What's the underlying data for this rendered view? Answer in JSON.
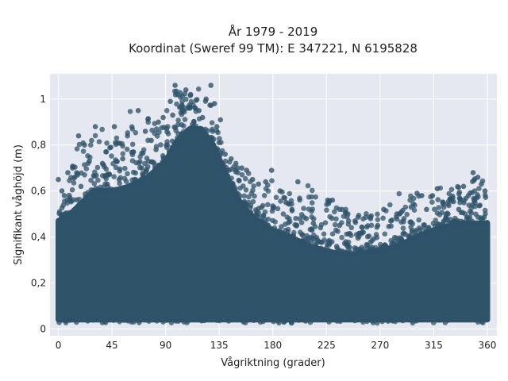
{
  "chart_data": {
    "type": "scatter",
    "title": "År 1979 - 2019",
    "subtitle": "Koordinat (Sweref 99 TM): E 347221, N 6195828",
    "xlabel": "Vågriktning (grader)",
    "ylabel": "Signifikant våghöjd (m)",
    "xlim": [
      -7,
      368
    ],
    "ylim": [
      -0.03,
      1.11
    ],
    "x_ticks": [
      0,
      45,
      90,
      135,
      180,
      225,
      270,
      315,
      360
    ],
    "x_tick_labels": [
      "0",
      "45",
      "90",
      "135",
      "180",
      "225",
      "270",
      "315",
      "360"
    ],
    "y_ticks": [
      0,
      0.2,
      0.4,
      0.6,
      0.8,
      1.0
    ],
    "y_tick_labels": [
      "0",
      "0,2",
      "0,4",
      "0,6",
      "0,8",
      "1"
    ],
    "grid": true,
    "legend": "none",
    "colors": {
      "marker": "#2f5369",
      "plot_background": "#e5e8f0",
      "grid": "#ffffff"
    },
    "series": [
      {
        "envelope": {
          "direction": [
            0,
            10,
            20,
            30,
            45,
            60,
            75,
            90,
            100,
            110,
            120,
            130,
            140,
            150,
            160,
            170,
            180,
            195,
            210,
            225,
            240,
            255,
            270,
            285,
            300,
            315,
            330,
            345,
            360
          ],
          "dense_min": [
            0.04,
            0.04,
            0.04,
            0.04,
            0.04,
            0.04,
            0.04,
            0.04,
            0.04,
            0.04,
            0.04,
            0.04,
            0.04,
            0.04,
            0.04,
            0.04,
            0.04,
            0.04,
            0.04,
            0.04,
            0.04,
            0.04,
            0.04,
            0.04,
            0.04,
            0.04,
            0.04,
            0.04,
            0.04
          ],
          "dense_max": [
            0.47,
            0.5,
            0.55,
            0.6,
            0.6,
            0.62,
            0.66,
            0.73,
            0.82,
            0.87,
            0.87,
            0.8,
            0.68,
            0.57,
            0.5,
            0.46,
            0.43,
            0.4,
            0.36,
            0.34,
            0.32,
            0.33,
            0.34,
            0.36,
            0.4,
            0.43,
            0.45,
            0.46,
            0.46
          ],
          "outlier_max": [
            0.62,
            0.72,
            0.84,
            0.88,
            0.88,
            0.95,
            0.93,
            0.96,
            1.06,
            1.03,
            1.06,
            0.96,
            0.75,
            0.72,
            0.69,
            0.64,
            0.65,
            0.6,
            0.64,
            0.56,
            0.56,
            0.5,
            0.52,
            0.59,
            0.58,
            0.61,
            0.62,
            0.68,
            0.65
          ]
        },
        "outliers": [
          {
            "x": 3,
            "y": 0.6
          },
          {
            "x": 8,
            "y": 0.68
          },
          {
            "x": 12,
            "y": 0.7
          },
          {
            "x": 17,
            "y": 0.84
          },
          {
            "x": 22,
            "y": 0.8
          },
          {
            "x": 26,
            "y": 0.73
          },
          {
            "x": 31,
            "y": 0.88
          },
          {
            "x": 37,
            "y": 0.72
          },
          {
            "x": 44,
            "y": 0.79
          },
          {
            "x": 47,
            "y": 0.88
          },
          {
            "x": 54,
            "y": 0.74
          },
          {
            "x": 58,
            "y": 0.84
          },
          {
            "x": 63,
            "y": 0.77
          },
          {
            "x": 67,
            "y": 0.95
          },
          {
            "x": 73,
            "y": 0.86
          },
          {
            "x": 78,
            "y": 0.82
          },
          {
            "x": 84,
            "y": 0.9
          },
          {
            "x": 88,
            "y": 0.92
          },
          {
            "x": 94,
            "y": 0.99
          },
          {
            "x": 98,
            "y": 1.06
          },
          {
            "x": 100,
            "y": 1.02
          },
          {
            "x": 104,
            "y": 0.97
          },
          {
            "x": 107,
            "y": 1.04
          },
          {
            "x": 111,
            "y": 1.02
          },
          {
            "x": 115,
            "y": 0.96
          },
          {
            "x": 124,
            "y": 1.0
          },
          {
            "x": 128,
            "y": 1.06
          },
          {
            "x": 131,
            "y": 0.98
          },
          {
            "x": 136,
            "y": 0.91
          },
          {
            "x": 140,
            "y": 0.76
          },
          {
            "x": 145,
            "y": 0.74
          },
          {
            "x": 149,
            "y": 0.72
          },
          {
            "x": 154,
            "y": 0.7
          },
          {
            "x": 158,
            "y": 0.69
          },
          {
            "x": 163,
            "y": 0.65
          },
          {
            "x": 168,
            "y": 0.63
          },
          {
            "x": 174,
            "y": 0.64
          },
          {
            "x": 179,
            "y": 0.69
          },
          {
            "x": 186,
            "y": 0.6
          },
          {
            "x": 191,
            "y": 0.55
          },
          {
            "x": 196,
            "y": 0.52
          },
          {
            "x": 201,
            "y": 0.64
          },
          {
            "x": 208,
            "y": 0.48
          },
          {
            "x": 214,
            "y": 0.46
          },
          {
            "x": 220,
            "y": 0.44
          },
          {
            "x": 226,
            "y": 0.56
          },
          {
            "x": 230,
            "y": 0.56
          },
          {
            "x": 236,
            "y": 0.45
          },
          {
            "x": 243,
            "y": 0.5
          },
          {
            "x": 249,
            "y": 0.47
          },
          {
            "x": 255,
            "y": 0.42
          },
          {
            "x": 262,
            "y": 0.48
          },
          {
            "x": 268,
            "y": 0.45
          },
          {
            "x": 273,
            "y": 0.52
          },
          {
            "x": 279,
            "y": 0.47
          },
          {
            "x": 284,
            "y": 0.5
          },
          {
            "x": 290,
            "y": 0.48
          },
          {
            "x": 296,
            "y": 0.53
          },
          {
            "x": 301,
            "y": 0.59
          },
          {
            "x": 305,
            "y": 0.58
          },
          {
            "x": 309,
            "y": 0.52
          },
          {
            "x": 314,
            "y": 0.58
          },
          {
            "x": 318,
            "y": 0.61
          },
          {
            "x": 323,
            "y": 0.55
          },
          {
            "x": 327,
            "y": 0.5
          },
          {
            "x": 331,
            "y": 0.57
          },
          {
            "x": 336,
            "y": 0.52
          },
          {
            "x": 340,
            "y": 0.62
          },
          {
            "x": 344,
            "y": 0.58
          },
          {
            "x": 348,
            "y": 0.68
          },
          {
            "x": 352,
            "y": 0.66
          },
          {
            "x": 355,
            "y": 0.63
          },
          {
            "x": 358,
            "y": 0.6
          },
          {
            "x": 0,
            "y": 0.65
          },
          {
            "x": 5,
            "y": 0.58
          },
          {
            "x": 19,
            "y": 0.62
          },
          {
            "x": 41,
            "y": 0.63
          },
          {
            "x": 51,
            "y": 0.65
          },
          {
            "x": 70,
            "y": 0.7
          },
          {
            "x": 82,
            "y": 0.78
          },
          {
            "x": 96,
            "y": 0.93
          },
          {
            "x": 118,
            "y": 0.95
          },
          {
            "x": 121,
            "y": 0.92
          },
          {
            "x": 133,
            "y": 0.88
          }
        ]
      }
    ]
  }
}
